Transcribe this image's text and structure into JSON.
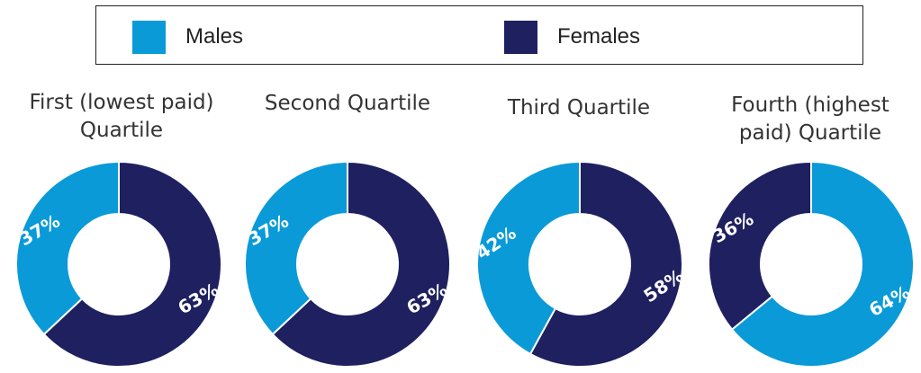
{
  "legend": {
    "items": [
      {
        "label": "Males",
        "color": "#0a9ad8"
      },
      {
        "label": "Females",
        "color": "#1f2060"
      }
    ]
  },
  "chart_data": [
    {
      "type": "pie",
      "title": "First (lowest paid) Quartile",
      "categories": [
        "Males",
        "Females"
      ],
      "values": [
        37,
        63
      ],
      "data_labels": [
        "37%",
        "63%"
      ]
    },
    {
      "type": "pie",
      "title": "Second Quartile",
      "categories": [
        "Males",
        "Females"
      ],
      "values": [
        37,
        63
      ],
      "data_labels": [
        "37%",
        "63%"
      ]
    },
    {
      "type": "pie",
      "title": "Third Quartile",
      "categories": [
        "Males",
        "Females"
      ],
      "values": [
        42,
        58
      ],
      "data_labels": [
        "42%",
        "58%"
      ]
    },
    {
      "type": "pie",
      "title": "Fourth (highest paid) Quartile",
      "categories": [
        "Females",
        "Males"
      ],
      "values": [
        36,
        64
      ],
      "data_labels": [
        "36%",
        "64%"
      ]
    }
  ]
}
